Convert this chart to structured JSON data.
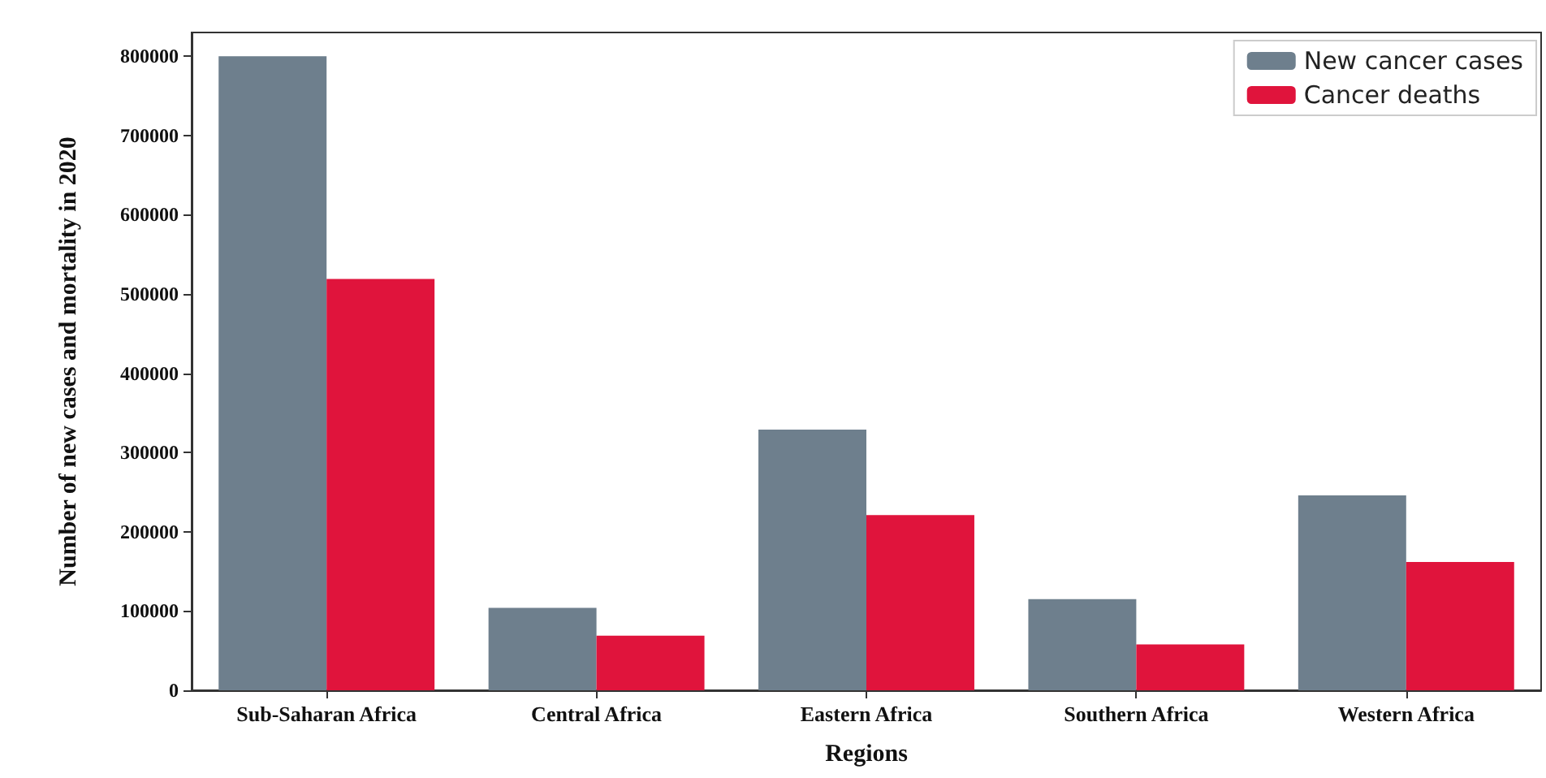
{
  "chart_data": {
    "type": "bar",
    "xlabel": "Regions",
    "ylabel": "Number of new cases and mortality in 2020",
    "categories": [
      "Sub-Saharan Africa",
      "Central Africa",
      "Eastern Africa",
      "Southern Africa",
      "Western Africa"
    ],
    "series": [
      {
        "name": "New cancer cases",
        "color": "#6e7f8d",
        "values": [
          800000,
          104000,
          329000,
          115000,
          246000
        ]
      },
      {
        "name": "Cancer deaths",
        "color": "#e0143c",
        "values": [
          519000,
          69000,
          221000,
          58000,
          162000
        ]
      }
    ],
    "ylim": [
      0,
      830000
    ],
    "yticks": [
      0,
      100000,
      200000,
      300000,
      400000,
      500000,
      600000,
      700000,
      800000
    ],
    "grid": false,
    "legend": "top right"
  }
}
